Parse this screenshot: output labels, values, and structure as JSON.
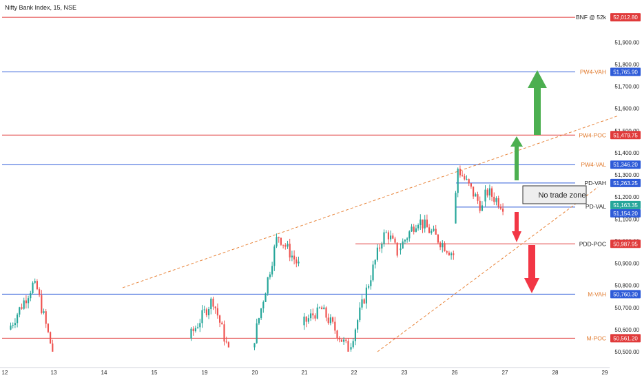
{
  "header": {
    "title": "Nifty Bank Index, 15, NSE"
  },
  "colors": {
    "red_level": "#e03a3a",
    "blue_level": "#2e5bd8",
    "orange_label": "#e0782a",
    "bull_candle": "#26a69a",
    "bear_candle": "#ef5350",
    "trend": "#e8843a",
    "up_arrow": "#4caf50",
    "down_arrow": "#f23645",
    "last_price_bg": "#26a69a"
  },
  "levels": [
    {
      "name": "BNF @ 52k",
      "price": 52012.8,
      "label": "52,012.80",
      "kind": "red",
      "name_color": "#222222",
      "x1": 3
    },
    {
      "name": "PW4-VAH",
      "price": 51765.9,
      "label": "51,765.90",
      "kind": "blue",
      "name_color": "#e0782a",
      "x1": 3
    },
    {
      "name": "PW4-POC",
      "price": 51479.75,
      "label": "51,479.75",
      "kind": "red",
      "name_color": "#e0782a",
      "x1": 3
    },
    {
      "name": "PW4-VAL",
      "price": 51346.2,
      "label": "51,346.20",
      "kind": "blue",
      "name_color": "#e0782a",
      "x1": 3
    },
    {
      "name": "PD-VAH",
      "price": 51263.25,
      "label": "51,263.25",
      "kind": "blue",
      "name_color": "#222222",
      "x1": 662
    },
    {
      "name": "PD-VAL",
      "price": 51154.2,
      "label": "51,154.20",
      "kind": "blue",
      "name_color": "#222222",
      "x1": 662
    },
    {
      "name": "PDD-POC",
      "price": 50987.95,
      "label": "50,987.95",
      "kind": "red",
      "name_color": "#222222",
      "x1": 516
    },
    {
      "name": "M-VAH",
      "price": 50760.3,
      "label": "50,760.30",
      "kind": "blue",
      "name_color": "#e0782a",
      "x1": 3
    },
    {
      "name": "M-POC",
      "price": 50561.2,
      "label": "50,561.20",
      "kind": "red",
      "name_color": "#e0782a",
      "x1": 3
    }
  ],
  "last_price": {
    "price": 51163.35,
    "label": "51,163.35"
  },
  "annotation": {
    "text": "No trade zone"
  },
  "chart_data": {
    "type": "candlestick",
    "title": "Nifty Bank Index, 15, NSE",
    "ylim": [
      50490,
      52050
    ],
    "y_ticks": [
      "51,900.00",
      "51,800.00",
      "51,700.00",
      "51,600.00",
      "51,500.00",
      "51,400.00",
      "51,300.00",
      "51,200.00",
      "51,100.00",
      "51,000.00",
      "50,900.00",
      "50,800.00",
      "50,700.00",
      "50,600.00",
      "50,500.00"
    ],
    "y_tick_values": [
      51900,
      51800,
      51700,
      51600,
      51500,
      51400,
      51300,
      51200,
      51100,
      51000,
      50900,
      50800,
      50700,
      50600,
      50500
    ],
    "x_ticks": [
      "12",
      "13",
      "14",
      "15",
      "19",
      "20",
      "21",
      "22",
      "23",
      "26",
      "27",
      "28",
      "29"
    ],
    "sessions": [
      {
        "day": "12",
        "open": 50560,
        "close": 50500,
        "low": 50490,
        "high": 50620,
        "peak": 50760,
        "peak_at": 0.2
      },
      {
        "day": "12b",
        "open": 50600,
        "close": 50500,
        "low": 50490,
        "high": 50800,
        "peak": 50820,
        "peak_at": 0.6
      },
      {
        "day": "19",
        "open": 50560,
        "close": 50500,
        "low": 50490,
        "high": 50720,
        "peak": 50740,
        "peak_at": 0.6
      },
      {
        "day": "20",
        "open": 50520,
        "close": 50890,
        "low": 50500,
        "high": 51010,
        "peak": 51030,
        "peak_at": 0.55
      },
      {
        "day": "21",
        "open": 50620,
        "close": 50510,
        "low": 50490,
        "high": 50680,
        "peak": 50700,
        "peak_at": 0.4
      },
      {
        "day": "22",
        "open": 50510,
        "close": 50950,
        "low": 50500,
        "high": 51020,
        "peak": 51060,
        "peak_at": 0.75
      },
      {
        "day": "23",
        "open": 50960,
        "close": 50940,
        "low": 50860,
        "high": 51080,
        "peak": 51100,
        "peak_at": 0.35
      },
      {
        "day": "26",
        "open": 51080,
        "close": 51150,
        "low": 51080,
        "high": 51320,
        "peak": 51330,
        "peak_at": 0.15
      },
      {
        "day": "27",
        "open": 51180,
        "close": 51163,
        "low": 51110,
        "high": 51220,
        "peak": 51225,
        "peak_at": 0.2
      }
    ]
  }
}
